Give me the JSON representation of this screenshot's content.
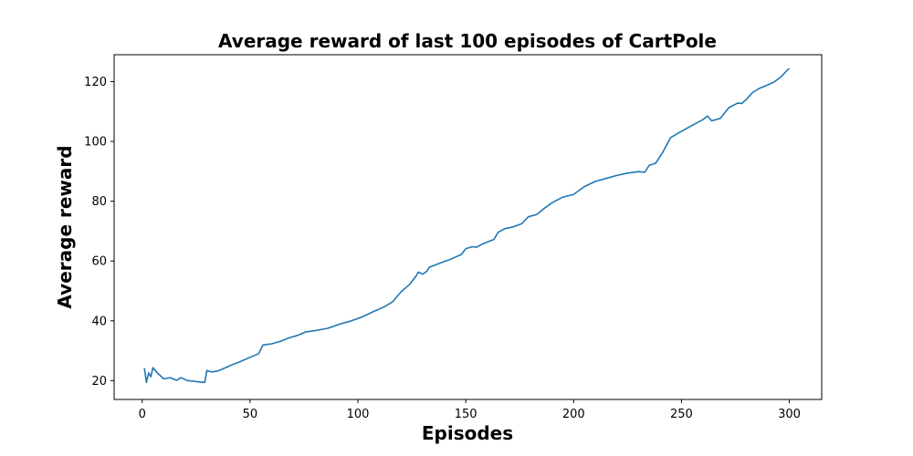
{
  "chart_data": {
    "type": "line",
    "title": "Average reward of last 100 episodes of CartPole",
    "xlabel": "Episodes",
    "ylabel": "Average reward",
    "xlim": [
      -13,
      315
    ],
    "ylim": [
      13.7,
      129.0
    ],
    "xticks": [
      0,
      50,
      100,
      150,
      200,
      250,
      300
    ],
    "yticks": [
      20,
      40,
      60,
      80,
      100,
      120
    ],
    "grid": false,
    "legend": "none",
    "series": [
      {
        "color": "#1f77b4",
        "points": [
          [
            1,
            24.2
          ],
          [
            2,
            19.4
          ],
          [
            3,
            22.6
          ],
          [
            4,
            21.3
          ],
          [
            5,
            24.3
          ],
          [
            7,
            22.6
          ],
          [
            10,
            20.6
          ],
          [
            13,
            21.0
          ],
          [
            16,
            20.1
          ],
          [
            18,
            21.0
          ],
          [
            21,
            20.0
          ],
          [
            24,
            19.8
          ],
          [
            26,
            19.6
          ],
          [
            29,
            19.4
          ],
          [
            30,
            23.4
          ],
          [
            32,
            22.9
          ],
          [
            35,
            23.2
          ],
          [
            38,
            24.1
          ],
          [
            41,
            25.1
          ],
          [
            45,
            26.2
          ],
          [
            50,
            27.8
          ],
          [
            54,
            29.0
          ],
          [
            56,
            31.9
          ],
          [
            60,
            32.3
          ],
          [
            64,
            33.1
          ],
          [
            68,
            34.3
          ],
          [
            72,
            35.1
          ],
          [
            76,
            36.3
          ],
          [
            80,
            36.7
          ],
          [
            86,
            37.5
          ],
          [
            92,
            39.0
          ],
          [
            97,
            40.0
          ],
          [
            102,
            41.3
          ],
          [
            107,
            43.0
          ],
          [
            112,
            44.6
          ],
          [
            116,
            46.3
          ],
          [
            120,
            49.7
          ],
          [
            124,
            52.2
          ],
          [
            127,
            55.0
          ],
          [
            128,
            56.3
          ],
          [
            130,
            55.6
          ],
          [
            132,
            56.6
          ],
          [
            133,
            57.9
          ],
          [
            138,
            59.3
          ],
          [
            143,
            60.6
          ],
          [
            148,
            62.2
          ],
          [
            150,
            64.1
          ],
          [
            153,
            64.8
          ],
          [
            155,
            64.6
          ],
          [
            158,
            65.8
          ],
          [
            163,
            67.2
          ],
          [
            165,
            69.6
          ],
          [
            168,
            70.8
          ],
          [
            172,
            71.4
          ],
          [
            176,
            72.5
          ],
          [
            179,
            74.8
          ],
          [
            183,
            75.6
          ],
          [
            186,
            77.4
          ],
          [
            190,
            79.5
          ],
          [
            195,
            81.4
          ],
          [
            200,
            82.3
          ],
          [
            205,
            84.9
          ],
          [
            210,
            86.6
          ],
          [
            215,
            87.6
          ],
          [
            220,
            88.6
          ],
          [
            225,
            89.4
          ],
          [
            230,
            89.9
          ],
          [
            233,
            89.7
          ],
          [
            235,
            92.0
          ],
          [
            238,
            92.7
          ],
          [
            241,
            96.0
          ],
          [
            245,
            101.3
          ],
          [
            250,
            103.4
          ],
          [
            255,
            105.4
          ],
          [
            260,
            107.3
          ],
          [
            262,
            108.5
          ],
          [
            264,
            106.9
          ],
          [
            268,
            107.7
          ],
          [
            272,
            111.3
          ],
          [
            276,
            112.8
          ],
          [
            278,
            112.7
          ],
          [
            280,
            114.0
          ],
          [
            283,
            116.4
          ],
          [
            286,
            117.7
          ],
          [
            290,
            118.9
          ],
          [
            293,
            119.9
          ],
          [
            296,
            121.5
          ],
          [
            299,
            123.8
          ],
          [
            300,
            124.4
          ]
        ]
      }
    ]
  }
}
